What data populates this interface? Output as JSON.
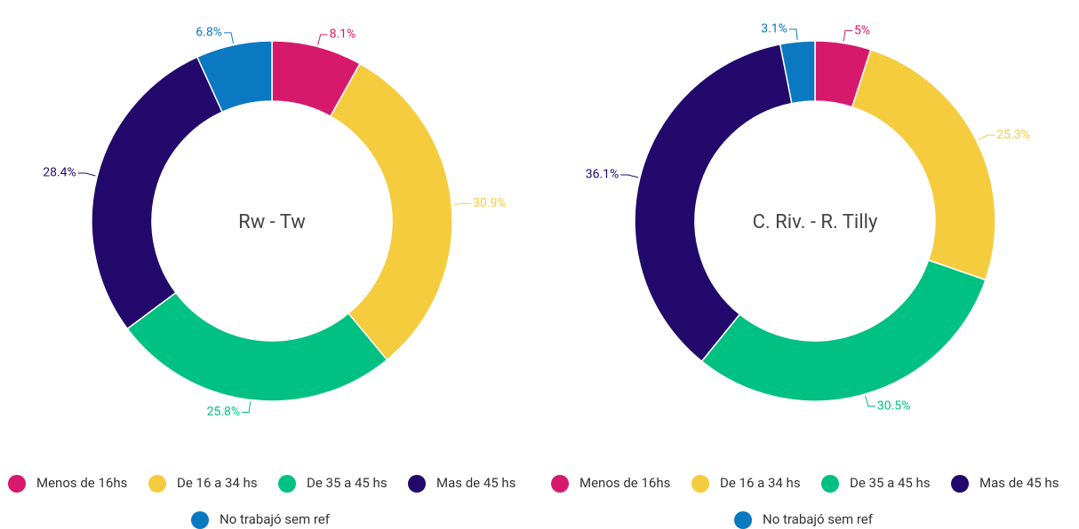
{
  "chart_data": [
    {
      "type": "donut",
      "title": "Rw - Tw",
      "categories": [
        "Menos de 16hs",
        "De 16 a 34 hs",
        "De 35 a 45 hs",
        "Mas de 45 hs",
        "No trabajó sem ref"
      ],
      "values": [
        8.1,
        30.9,
        25.8,
        28.4,
        6.8
      ],
      "value_labels": [
        "8.1%",
        "30.9%",
        "25.8%",
        "28.4%",
        "6.8%"
      ],
      "colors": [
        "#d6196b",
        "#f5cc3e",
        "#00c082",
        "#22096b",
        "#0a79c2"
      ]
    },
    {
      "type": "donut",
      "title": "C. Riv. - R. Tilly",
      "categories": [
        "Menos de 16hs",
        "De 16 a 34 hs",
        "De 35 a 45 hs",
        "Mas de 45 hs",
        "No trabajó sem ref"
      ],
      "values": [
        5,
        25.3,
        30.5,
        36.1,
        3.1
      ],
      "value_labels": [
        "5%",
        "25.3%",
        "30.5%",
        "36.1%",
        "3.1%"
      ],
      "colors": [
        "#d6196b",
        "#f5cc3e",
        "#00c082",
        "#22096b",
        "#0a79c2"
      ]
    }
  ]
}
